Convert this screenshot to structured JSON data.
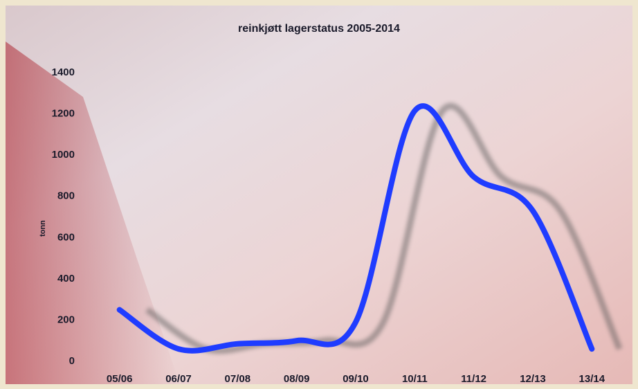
{
  "chart_data": {
    "type": "line",
    "title": "reinkjøtt lagerstatus 2005-2014",
    "y_label": "tonn",
    "categories": [
      "05/06",
      "06/07",
      "07/08",
      "08/09",
      "09/10",
      "10/11",
      "11/12",
      "12/13",
      "13/14"
    ],
    "values": [
      250,
      60,
      85,
      100,
      190,
      1215,
      895,
      730,
      60
    ],
    "color": "#1f3cff",
    "ylim": [
      0,
      1400
    ],
    "yticks": [
      0,
      200,
      400,
      600,
      800,
      1000,
      1200,
      1400
    ],
    "grid": false
  }
}
